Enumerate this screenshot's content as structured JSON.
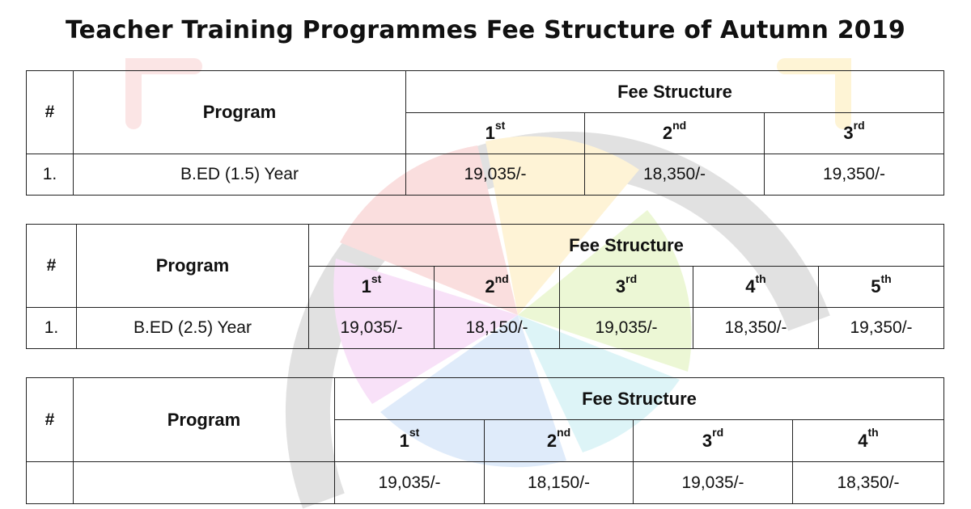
{
  "title": "Teacher Training Programmes Fee Structure of Autumn 2019",
  "header": {
    "hash": "#",
    "program": "Program",
    "fee_structure": "Fee Structure"
  },
  "ordinals": [
    {
      "num": "1",
      "suffix": "st"
    },
    {
      "num": "2",
      "suffix": "nd"
    },
    {
      "num": "3",
      "suffix": "rd"
    },
    {
      "num": "4",
      "suffix": "th"
    },
    {
      "num": "5",
      "suffix": "th"
    }
  ],
  "tables": [
    {
      "rows": [
        {
          "sno": "1.",
          "program": "B.ED (1.5) Year",
          "fees": [
            "19,035/-",
            "18,350/-",
            "19,350/-"
          ]
        }
      ]
    },
    {
      "rows": [
        {
          "sno": "1.",
          "program": "B.ED (2.5) Year",
          "fees": [
            "19,035/-",
            "18,150/-",
            "19,035/-",
            "18,350/-",
            "19,350/-"
          ]
        }
      ]
    },
    {
      "rows": [
        {
          "sno": "",
          "program": "",
          "fees": [
            "19,035/-",
            "18,150/-",
            "19,035/-",
            "18,350/-"
          ]
        }
      ]
    }
  ],
  "watermark_colors": [
    "#f4b3b3",
    "#fde9a8",
    "#d9f0a6",
    "#b9e7ef",
    "#bcd6f7",
    "#efb9ef",
    "#cccccc"
  ]
}
